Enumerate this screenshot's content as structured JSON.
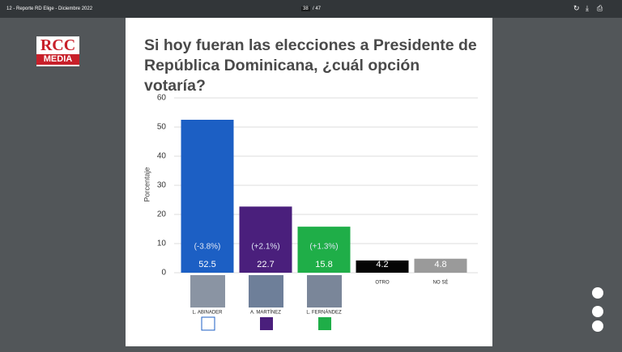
{
  "viewer": {
    "title": "12 - Reporte RD Elige - Diciembre 2022",
    "page": "38",
    "total": "/ 47"
  },
  "logo": {
    "top": "RCC",
    "bottom": "MEDIA"
  },
  "chart_data": {
    "type": "bar",
    "title": "Si hoy fueran las elecciones a Presidente de República Dominicana, ¿cuál opción votaría?",
    "y_label": "Porcentaje",
    "categories": [
      "L. ABINADER",
      "A. MARTÍNEZ",
      "L. FERNÁNDEZ",
      "OTRO",
      "NO SÉ"
    ],
    "values": [
      52.5,
      22.7,
      15.8,
      4.2,
      4.8
    ],
    "colors": [
      "#1c5fc4",
      "#4a1f7c",
      "#1fae48",
      "#050505",
      "#9a9a9a"
    ],
    "changes": [
      "(-3.8%)",
      "(+2.1%)",
      "(+1.3%)"
    ],
    "ylim": [
      0,
      60
    ],
    "yticks": [
      0,
      10,
      20,
      30,
      40,
      50,
      60
    ],
    "grid": true
  }
}
